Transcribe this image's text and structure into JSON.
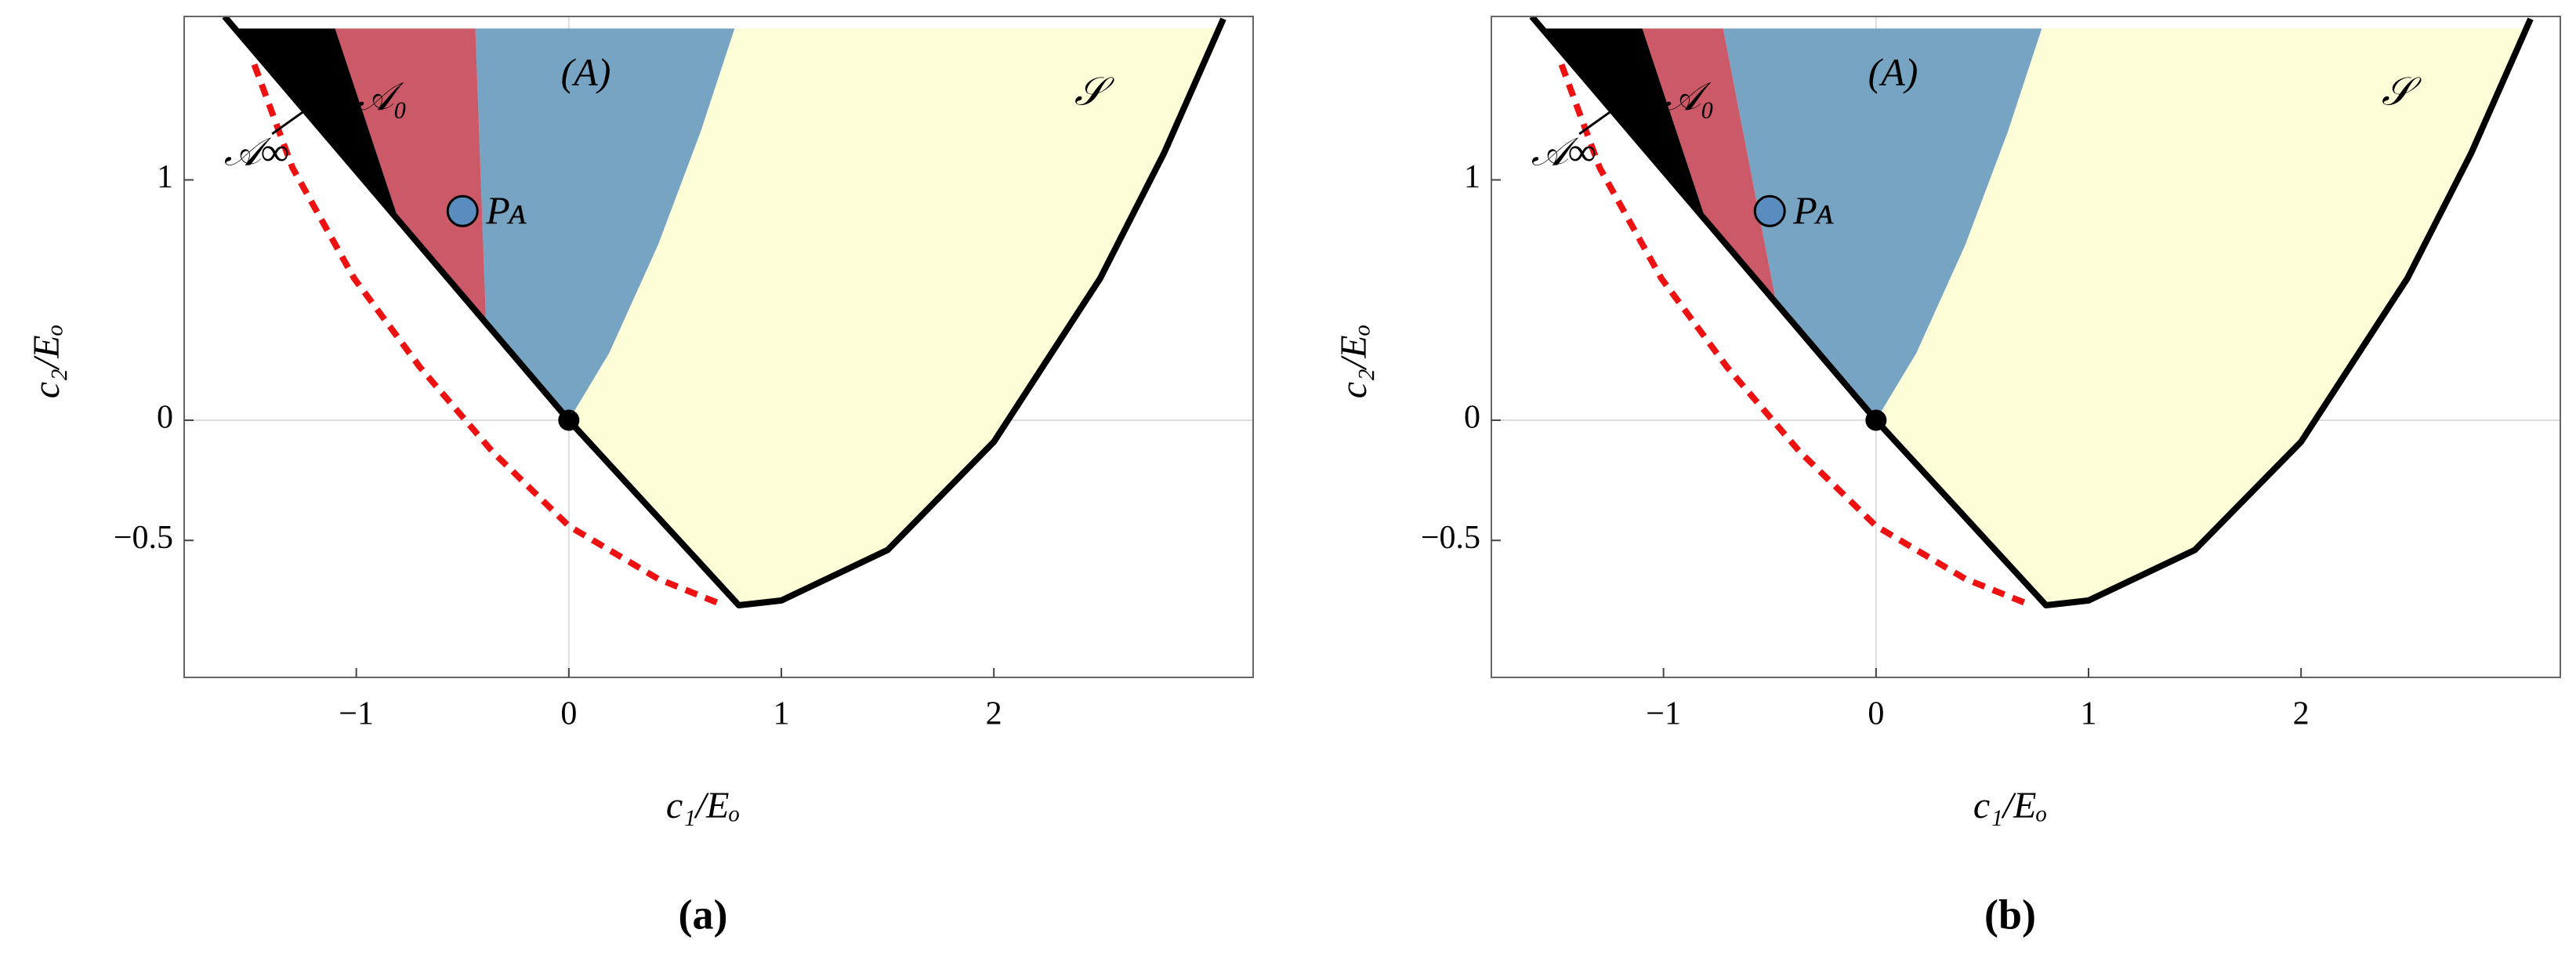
{
  "chart_data": [
    {
      "type": "region",
      "xlabel": "c₁/Eₒ",
      "ylabel": "c₂/Eₒ",
      "caption": "(a)",
      "xlim": [
        -1.81,
        3.22
      ],
      "ylim": [
        -1.07,
        1.68
      ],
      "xticks": [
        {
          "value": -1,
          "label": "−1"
        },
        0,
        1,
        2
      ],
      "yticks": [
        {
          "value": -0.5,
          "label": "−0.5"
        },
        0,
        1
      ],
      "zero_lines": true,
      "regions": [
        {
          "name": "𝒮",
          "color": "#fdfdd6",
          "x": [
            0.78,
            3.06,
            2.8,
            2.5,
            2,
            1.5,
            1,
            0.8,
            0,
            0.19,
            0.42,
            0.62
          ],
          "y": [
            1.63,
            1.63,
            1.11,
            0.59,
            -0.09,
            -0.54,
            -0.75,
            -0.77,
            0,
            0.28,
            0.73,
            1.2
          ]
        },
        {
          "name": "(A)",
          "color": "#6f9fbf",
          "x": [
            -0.44,
            0.78,
            0.62,
            0.42,
            0.19,
            0,
            -0.39
          ],
          "y": [
            1.63,
            1.63,
            1.2,
            0.73,
            0.28,
            0,
            0.41
          ]
        },
        {
          "name": "𝒜₀",
          "color": "#c9505f",
          "x": [
            -1.1,
            -0.44,
            -0.39,
            -0.8
          ],
          "y": [
            1.63,
            1.63,
            0.41,
            0.83
          ]
        },
        {
          "name": "𝒜∞",
          "color": "#000000",
          "x": [
            -1.57,
            -1.1,
            -0.8
          ],
          "y": [
            1.63,
            1.63,
            0.83
          ]
        }
      ],
      "lines": [
        {
          "color": "#000000",
          "style": "solid",
          "x": [
            -1.62,
            0,
            0.8,
            1,
            1.5,
            2,
            2.5,
            2.8,
            3.08
          ],
          "y": [
            1.68,
            0,
            -0.77,
            -0.75,
            -0.54,
            -0.09,
            0.59,
            1.11,
            1.67
          ]
        },
        {
          "color": "#ee1111",
          "style": "dashed",
          "x": [
            -1.48,
            -1.3,
            -1.01,
            -0.7,
            -0.36,
            0,
            0.42,
            0.73
          ],
          "y": [
            1.48,
            1.05,
            0.59,
            0.22,
            -0.13,
            -0.44,
            -0.66,
            -0.77
          ]
        }
      ],
      "points": [
        {
          "name": "Pᴀ",
          "color": "#5b8cc0",
          "x": -0.5,
          "y": 0.87
        },
        {
          "color": "#000000",
          "x": 0,
          "y": 0
        }
      ]
    },
    {
      "type": "region",
      "xlabel": "c₁/Eₒ",
      "ylabel": "c₂/Eₒ",
      "caption": "(b)",
      "xlim": [
        -1.81,
        3.22
      ],
      "ylim": [
        -1.07,
        1.68
      ],
      "xticks": [
        {
          "value": -1,
          "label": "−1"
        },
        0,
        1,
        2
      ],
      "yticks": [
        {
          "value": -0.5,
          "label": "−0.5"
        },
        0,
        1
      ],
      "zero_lines": true,
      "regions": [
        {
          "name": "𝒮",
          "color": "#fdfdd6",
          "x": [
            0.78,
            3.06,
            2.8,
            2.5,
            2,
            1.5,
            1,
            0.8,
            0,
            0.19,
            0.42,
            0.62
          ],
          "y": [
            1.63,
            1.63,
            1.11,
            0.59,
            -0.09,
            -0.54,
            -0.75,
            -0.77,
            0,
            0.28,
            0.73,
            1.2
          ]
        },
        {
          "name": "(A)",
          "color": "#6f9fbf",
          "x": [
            -0.72,
            0.78,
            0.62,
            0.42,
            0.19,
            0,
            -0.47
          ],
          "y": [
            1.63,
            1.63,
            1.2,
            0.73,
            0.28,
            0,
            0.49
          ]
        },
        {
          "name": "𝒜₀",
          "color": "#c9505f",
          "x": [
            -1.1,
            -0.72,
            -0.47,
            -0.8
          ],
          "y": [
            1.63,
            1.63,
            0.49,
            0.83
          ]
        },
        {
          "name": "𝒜∞",
          "color": "#000000",
          "x": [
            -1.57,
            -1.1,
            -0.8
          ],
          "y": [
            1.63,
            1.63,
            0.83
          ]
        }
      ],
      "lines": [
        {
          "color": "#000000",
          "style": "solid",
          "x": [
            -1.62,
            0,
            0.8,
            1,
            1.5,
            2,
            2.5,
            2.8,
            3.08
          ],
          "y": [
            1.68,
            0,
            -0.77,
            -0.75,
            -0.54,
            -0.09,
            0.59,
            1.11,
            1.67
          ]
        },
        {
          "color": "#ee1111",
          "style": "dashed",
          "x": [
            -1.48,
            -1.3,
            -1.01,
            -0.7,
            -0.36,
            0,
            0.42,
            0.73
          ],
          "y": [
            1.48,
            1.05,
            0.59,
            0.22,
            -0.13,
            -0.44,
            -0.66,
            -0.77
          ]
        }
      ],
      "points": [
        {
          "name": "Pᴀ",
          "color": "#5b8cc0",
          "x": -0.5,
          "y": 0.87
        },
        {
          "color": "#000000",
          "x": 0,
          "y": 0
        }
      ]
    }
  ]
}
